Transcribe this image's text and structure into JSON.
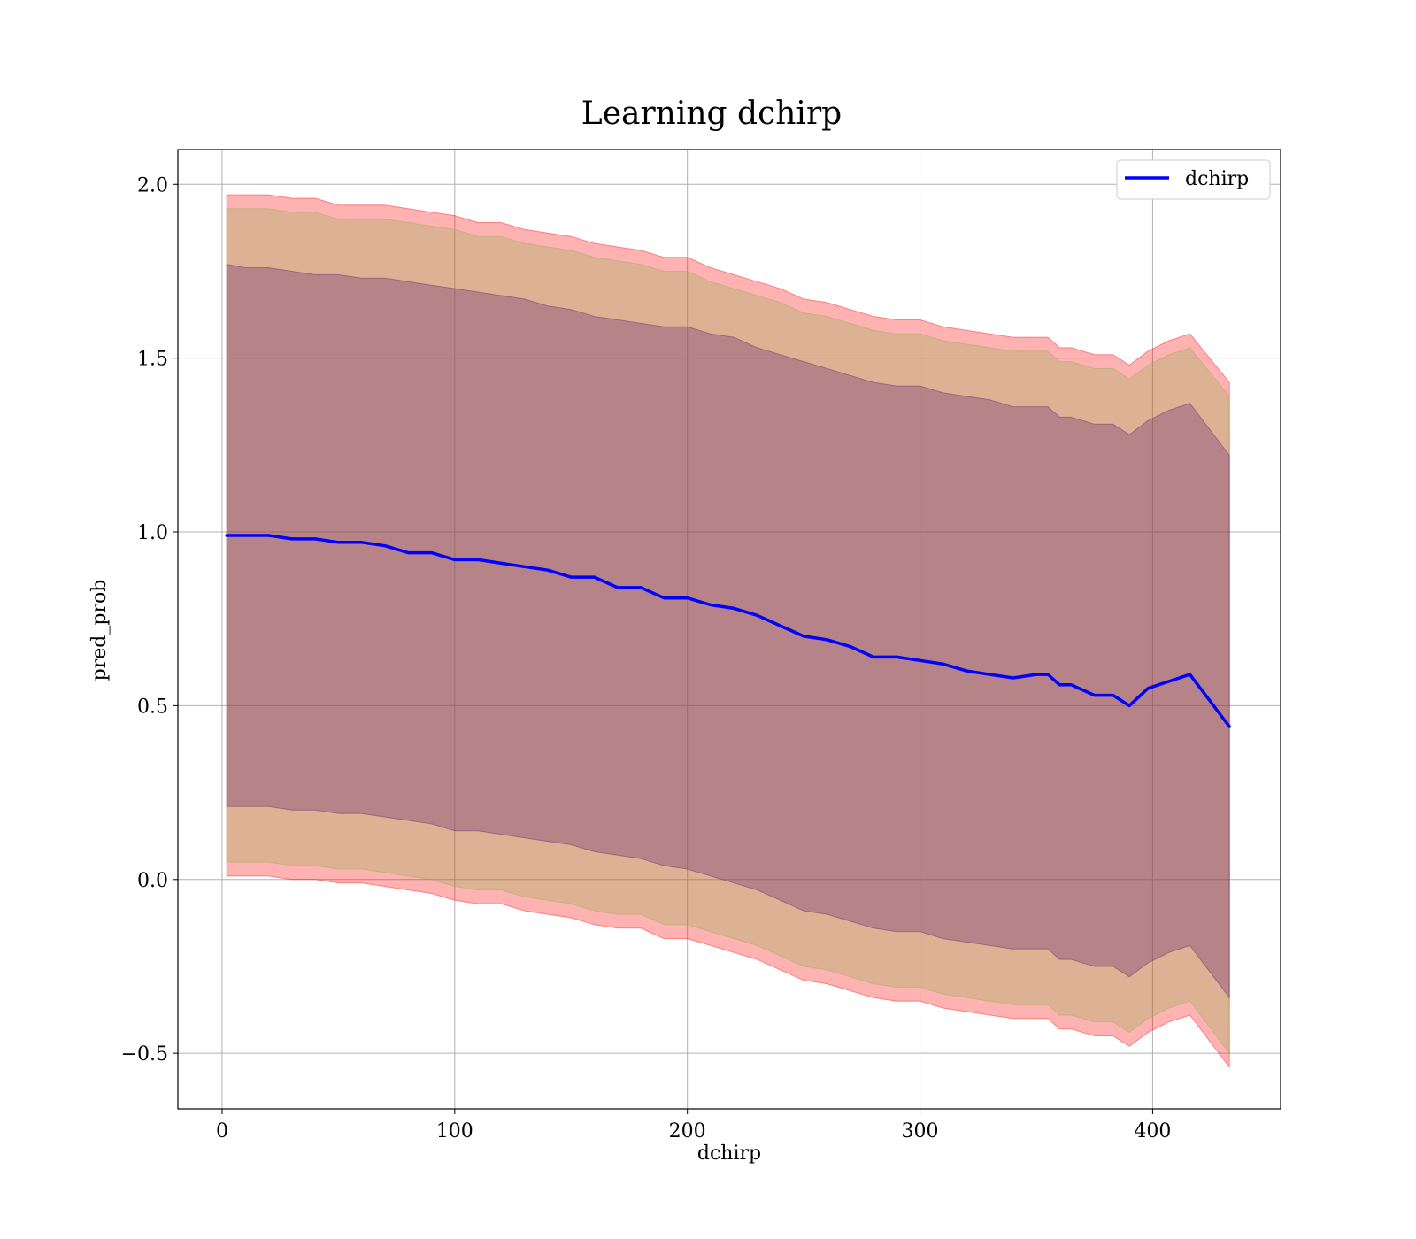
{
  "chart_data": {
    "type": "line",
    "title": "Learning dchirp",
    "xlabel": "dchirp",
    "ylabel": "pred_prob",
    "xlim": [
      -19,
      455
    ],
    "ylim": [
      -0.66,
      2.1
    ],
    "xticks": [
      0,
      100,
      200,
      300,
      400
    ],
    "yticks": [
      -0.5,
      0.0,
      0.5,
      1.0,
      1.5,
      2.0
    ],
    "xtick_labels": [
      "0",
      "100",
      "200",
      "300",
      "400"
    ],
    "ytick_labels": [
      "−0.5",
      "0.0",
      "0.5",
      "1.0",
      "1.5",
      "2.0"
    ],
    "grid": true,
    "legend": {
      "position": "top-right",
      "entries": [
        "dchirp"
      ]
    },
    "colors": {
      "line": "#0000ff",
      "band_outer": "#ff0000",
      "band_middle": "#8fae4f",
      "band_inner": "#5e1f6c"
    },
    "x": [
      2,
      10,
      20,
      30,
      40,
      50,
      60,
      70,
      80,
      90,
      100,
      110,
      120,
      130,
      140,
      150,
      160,
      170,
      180,
      190,
      200,
      210,
      220,
      230,
      240,
      250,
      260,
      270,
      280,
      290,
      300,
      310,
      320,
      330,
      340,
      350,
      355,
      360,
      365,
      375,
      383,
      390,
      398,
      407,
      416,
      433
    ],
    "series": [
      {
        "name": "dchirp",
        "values": [
          0.99,
          0.99,
          0.99,
          0.98,
          0.98,
          0.97,
          0.97,
          0.96,
          0.94,
          0.94,
          0.92,
          0.92,
          0.91,
          0.9,
          0.89,
          0.87,
          0.87,
          0.84,
          0.84,
          0.81,
          0.81,
          0.79,
          0.78,
          0.76,
          0.73,
          0.7,
          0.69,
          0.67,
          0.64,
          0.64,
          0.63,
          0.62,
          0.6,
          0.59,
          0.58,
          0.59,
          0.59,
          0.56,
          0.56,
          0.53,
          0.53,
          0.5,
          0.55,
          0.57,
          0.59,
          0.44
        ]
      }
    ],
    "bands": [
      {
        "upper": [
          1.97,
          1.97,
          1.97,
          1.96,
          1.96,
          1.94,
          1.94,
          1.94,
          1.93,
          1.92,
          1.91,
          1.89,
          1.89,
          1.87,
          1.86,
          1.85,
          1.83,
          1.82,
          1.81,
          1.79,
          1.79,
          1.76,
          1.74,
          1.72,
          1.7,
          1.67,
          1.66,
          1.64,
          1.62,
          1.61,
          1.61,
          1.59,
          1.58,
          1.57,
          1.56,
          1.56,
          1.56,
          1.53,
          1.53,
          1.51,
          1.51,
          1.48,
          1.52,
          1.55,
          1.57,
          1.43
        ],
        "lower": [
          0.01,
          0.01,
          0.01,
          0.0,
          0.0,
          -0.01,
          -0.01,
          -0.02,
          -0.03,
          -0.04,
          -0.06,
          -0.07,
          -0.07,
          -0.09,
          -0.1,
          -0.11,
          -0.13,
          -0.14,
          -0.14,
          -0.17,
          -0.17,
          -0.19,
          -0.21,
          -0.23,
          -0.26,
          -0.29,
          -0.3,
          -0.32,
          -0.34,
          -0.35,
          -0.35,
          -0.37,
          -0.38,
          -0.39,
          -0.4,
          -0.4,
          -0.4,
          -0.43,
          -0.43,
          -0.45,
          -0.45,
          -0.48,
          -0.44,
          -0.41,
          -0.39,
          -0.54
        ]
      },
      {
        "upper": [
          1.93,
          1.93,
          1.93,
          1.92,
          1.92,
          1.9,
          1.9,
          1.9,
          1.89,
          1.88,
          1.87,
          1.85,
          1.85,
          1.83,
          1.82,
          1.81,
          1.79,
          1.78,
          1.77,
          1.75,
          1.75,
          1.72,
          1.7,
          1.68,
          1.66,
          1.63,
          1.62,
          1.6,
          1.58,
          1.57,
          1.57,
          1.55,
          1.54,
          1.53,
          1.52,
          1.52,
          1.52,
          1.49,
          1.49,
          1.47,
          1.47,
          1.44,
          1.48,
          1.51,
          1.53,
          1.39
        ],
        "lower": [
          0.05,
          0.05,
          0.05,
          0.04,
          0.04,
          0.03,
          0.03,
          0.02,
          0.01,
          0.0,
          -0.02,
          -0.03,
          -0.03,
          -0.05,
          -0.06,
          -0.07,
          -0.09,
          -0.1,
          -0.1,
          -0.13,
          -0.13,
          -0.15,
          -0.17,
          -0.19,
          -0.22,
          -0.25,
          -0.26,
          -0.28,
          -0.3,
          -0.31,
          -0.31,
          -0.33,
          -0.34,
          -0.35,
          -0.36,
          -0.36,
          -0.36,
          -0.39,
          -0.39,
          -0.41,
          -0.41,
          -0.44,
          -0.4,
          -0.37,
          -0.35,
          -0.5
        ]
      },
      {
        "upper": [
          1.77,
          1.76,
          1.76,
          1.75,
          1.74,
          1.74,
          1.73,
          1.73,
          1.72,
          1.71,
          1.7,
          1.69,
          1.68,
          1.67,
          1.65,
          1.64,
          1.62,
          1.61,
          1.6,
          1.59,
          1.59,
          1.57,
          1.56,
          1.53,
          1.51,
          1.49,
          1.47,
          1.45,
          1.43,
          1.42,
          1.42,
          1.4,
          1.39,
          1.38,
          1.36,
          1.36,
          1.36,
          1.33,
          1.33,
          1.31,
          1.31,
          1.28,
          1.32,
          1.35,
          1.37,
          1.22
        ],
        "lower": [
          0.21,
          0.21,
          0.21,
          0.2,
          0.2,
          0.19,
          0.19,
          0.18,
          0.17,
          0.16,
          0.14,
          0.14,
          0.13,
          0.12,
          0.11,
          0.1,
          0.08,
          0.07,
          0.06,
          0.04,
          0.03,
          0.01,
          -0.01,
          -0.03,
          -0.06,
          -0.09,
          -0.1,
          -0.12,
          -0.14,
          -0.15,
          -0.15,
          -0.17,
          -0.18,
          -0.19,
          -0.2,
          -0.2,
          -0.2,
          -0.23,
          -0.23,
          -0.25,
          -0.25,
          -0.28,
          -0.24,
          -0.21,
          -0.19,
          -0.34
        ]
      }
    ]
  }
}
